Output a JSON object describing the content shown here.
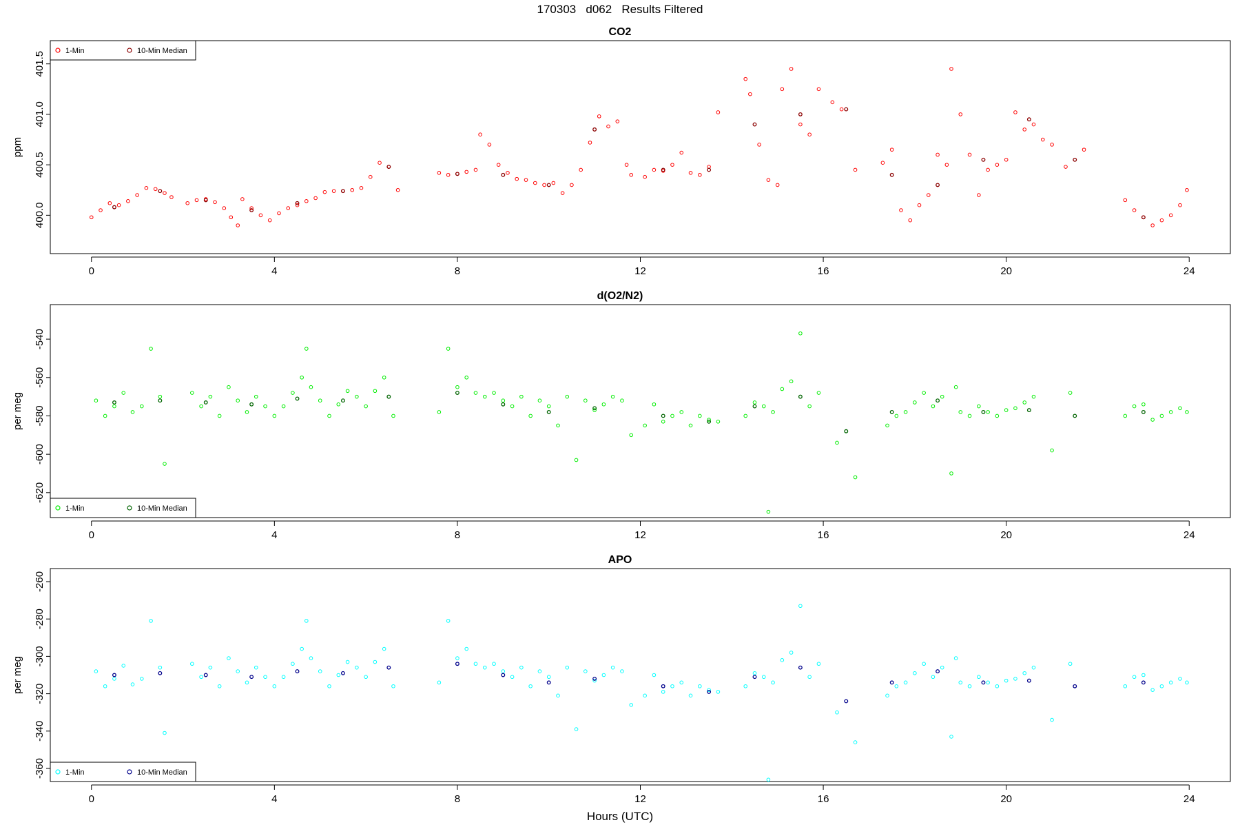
{
  "figure_title": "170303   d062   Results Filtered",
  "xlabel": "Hours (UTC)",
  "colors": {
    "co2_one_min": "#ff0000",
    "co2_median": "#8b0000",
    "o2_one_min": "#00ee00",
    "o2_median": "#006400",
    "apo_one_min": "#00ffff",
    "apo_median": "#00008b"
  },
  "chart_data": [
    {
      "type": "scatter",
      "title": "CO2",
      "ylabel": "ppm",
      "xlim": [
        -0.9,
        24.9
      ],
      "ylim": [
        399.62,
        401.73
      ],
      "xticks": [
        0,
        4,
        8,
        12,
        16,
        20,
        24
      ],
      "yticks": [
        400.0,
        400.5,
        401.0,
        401.5
      ],
      "ytick_labels": [
        "400.0",
        "400.5",
        "401.0",
        "401.5"
      ],
      "legend_position": "top-left",
      "legend": [
        "1-Min",
        "10-Min Median"
      ],
      "series": [
        {
          "name": "1-Min",
          "color": "#ff0000",
          "x": [
            0.0,
            0.2,
            0.4,
            0.6,
            0.8,
            1.0,
            1.2,
            1.4,
            1.6,
            1.75,
            2.1,
            2.3,
            2.5,
            2.7,
            2.9,
            3.05,
            3.2,
            3.3,
            3.5,
            3.7,
            3.9,
            4.1,
            4.3,
            4.5,
            4.7,
            4.9,
            5.1,
            5.3,
            5.5,
            5.7,
            5.9,
            6.1,
            6.3,
            6.5,
            6.7,
            7.6,
            7.8,
            8.0,
            8.2,
            8.4,
            8.5,
            8.7,
            8.9,
            9.1,
            9.3,
            9.5,
            9.7,
            9.9,
            10.1,
            10.3,
            10.5,
            10.7,
            10.9,
            11.1,
            11.3,
            11.5,
            11.7,
            11.8,
            12.1,
            12.3,
            12.5,
            12.7,
            12.9,
            13.1,
            13.3,
            13.5,
            13.7,
            14.3,
            14.4,
            14.6,
            14.8,
            15.0,
            15.1,
            15.3,
            15.5,
            15.7,
            15.9,
            16.2,
            16.4,
            16.7,
            17.3,
            17.5,
            17.7,
            17.9,
            18.1,
            18.3,
            18.5,
            18.7,
            18.8,
            19.0,
            19.2,
            19.4,
            19.6,
            19.8,
            20.0,
            20.2,
            20.4,
            20.6,
            20.8,
            21.0,
            21.3,
            21.7,
            22.6,
            22.8,
            23.0,
            23.2,
            23.4,
            23.6,
            23.8,
            23.95
          ],
          "y": [
            399.98,
            400.05,
            400.12,
            400.1,
            400.14,
            400.2,
            400.27,
            400.26,
            400.22,
            400.18,
            400.12,
            400.15,
            400.16,
            400.13,
            400.07,
            399.98,
            399.9,
            400.16,
            400.07,
            400.0,
            399.95,
            400.02,
            400.07,
            400.1,
            400.14,
            400.17,
            400.23,
            400.24,
            400.24,
            400.25,
            400.27,
            400.38,
            400.52,
            400.48,
            400.25,
            400.42,
            400.4,
            400.41,
            400.43,
            400.45,
            400.8,
            400.7,
            400.5,
            400.42,
            400.36,
            400.35,
            400.32,
            400.3,
            400.32,
            400.22,
            400.3,
            400.45,
            400.72,
            400.98,
            400.88,
            400.93,
            400.5,
            400.4,
            400.38,
            400.45,
            400.44,
            400.5,
            400.62,
            400.42,
            400.4,
            400.48,
            401.02,
            401.35,
            401.2,
            400.7,
            400.35,
            400.3,
            401.25,
            401.45,
            400.9,
            400.8,
            401.25,
            401.12,
            401.05,
            400.45,
            400.52,
            400.65,
            400.05,
            399.95,
            400.1,
            400.2,
            400.6,
            400.5,
            401.45,
            401.0,
            400.6,
            400.2,
            400.45,
            400.5,
            400.55,
            401.02,
            400.85,
            400.9,
            400.75,
            400.7,
            400.48,
            400.65,
            400.15,
            400.05,
            399.98,
            399.9,
            399.95,
            400.0,
            400.1,
            400.25
          ]
        },
        {
          "name": "10-Min Median",
          "color": "#8b0000",
          "x": [
            0.5,
            1.5,
            2.5,
            3.5,
            4.5,
            5.5,
            6.5,
            8.0,
            9.0,
            10.0,
            11.0,
            12.5,
            13.5,
            14.5,
            15.5,
            16.5,
            17.5,
            18.5,
            19.5,
            20.5,
            21.5,
            23.0
          ],
          "y": [
            400.08,
            400.24,
            400.15,
            400.05,
            400.12,
            400.24,
            400.48,
            400.41,
            400.4,
            400.3,
            400.85,
            400.45,
            400.45,
            400.9,
            401.0,
            401.05,
            400.4,
            400.3,
            400.55,
            400.95,
            400.55,
            399.98
          ]
        }
      ]
    },
    {
      "type": "scatter",
      "title": "d(O2/N2)",
      "ylabel": "per meg",
      "xlim": [
        -0.9,
        24.9
      ],
      "ylim": [
        -633,
        -522
      ],
      "xticks": [
        0,
        4,
        8,
        12,
        16,
        20,
        24
      ],
      "yticks": [
        -620,
        -600,
        -580,
        -560,
        -540
      ],
      "ytick_labels": [
        "-620",
        "-600",
        "-580",
        "-560",
        "-540"
      ],
      "legend_position": "bottom-left",
      "legend": [
        "1-Min",
        "10-Min Median"
      ],
      "series": [
        {
          "name": "1-Min",
          "color": "#00ee00",
          "x": [
            0.1,
            0.3,
            0.5,
            0.7,
            0.9,
            1.1,
            1.3,
            1.5,
            1.6,
            2.2,
            2.4,
            2.6,
            2.8,
            3.0,
            3.2,
            3.4,
            3.6,
            3.8,
            4.0,
            4.2,
            4.4,
            4.6,
            4.7,
            4.8,
            5.0,
            5.2,
            5.4,
            5.6,
            5.8,
            6.0,
            6.2,
            6.4,
            6.6,
            7.6,
            7.8,
            8.0,
            8.2,
            8.4,
            8.6,
            8.8,
            9.0,
            9.2,
            9.4,
            9.6,
            9.8,
            10.0,
            10.2,
            10.4,
            10.6,
            10.8,
            11.0,
            11.2,
            11.4,
            11.6,
            11.8,
            12.1,
            12.3,
            12.5,
            12.7,
            12.9,
            13.1,
            13.3,
            13.5,
            13.7,
            14.3,
            14.5,
            14.7,
            14.8,
            14.9,
            15.1,
            15.3,
            15.5,
            15.7,
            15.9,
            16.3,
            16.7,
            17.4,
            17.6,
            17.8,
            18.0,
            18.2,
            18.4,
            18.6,
            18.8,
            18.9,
            19.0,
            19.2,
            19.4,
            19.6,
            19.8,
            20.0,
            20.2,
            20.4,
            20.6,
            21.0,
            21.4,
            22.6,
            22.8,
            23.0,
            23.2,
            23.4,
            23.6,
            23.8,
            23.95
          ],
          "y": [
            -572,
            -580,
            -575,
            -568,
            -578,
            -575,
            -545,
            -570,
            -605,
            -568,
            -575,
            -570,
            -580,
            -565,
            -572,
            -578,
            -570,
            -575,
            -580,
            -575,
            -568,
            -560,
            -545,
            -565,
            -572,
            -580,
            -574,
            -567,
            -570,
            -575,
            -567,
            -560,
            -580,
            -578,
            -545,
            -565,
            -560,
            -568,
            -570,
            -568,
            -572,
            -575,
            -570,
            -580,
            -572,
            -575,
            -585,
            -570,
            -603,
            -572,
            -577,
            -574,
            -570,
            -572,
            -590,
            -585,
            -574,
            -583,
            -580,
            -578,
            -585,
            -580,
            -582,
            -583,
            -580,
            -573,
            -575,
            -630,
            -578,
            -566,
            -562,
            -537,
            -575,
            -568,
            -594,
            -612,
            -585,
            -580,
            -578,
            -573,
            -568,
            -575,
            -570,
            -610,
            -565,
            -578,
            -580,
            -575,
            -578,
            -580,
            -577,
            -576,
            -573,
            -570,
            -598,
            -568,
            -580,
            -575,
            -574,
            -582,
            -580,
            -578,
            -576,
            -578
          ]
        },
        {
          "name": "10-Min Median",
          "color": "#006400",
          "x": [
            0.5,
            1.5,
            2.5,
            3.5,
            4.5,
            5.5,
            6.5,
            8.0,
            9.0,
            10.0,
            11.0,
            12.5,
            13.5,
            14.5,
            15.5,
            16.5,
            17.5,
            18.5,
            19.5,
            20.5,
            21.5,
            23.0
          ],
          "y": [
            -573,
            -572,
            -573,
            -574,
            -571,
            -572,
            -570,
            -568,
            -574,
            -578,
            -576,
            -580,
            -583,
            -575,
            -570,
            -588,
            -578,
            -572,
            -578,
            -577,
            -580,
            -578
          ]
        }
      ]
    },
    {
      "type": "scatter",
      "title": "APO",
      "ylabel": "per meg",
      "xlim": [
        -0.9,
        24.9
      ],
      "ylim": [
        -367,
        -253
      ],
      "xticks": [
        0,
        4,
        8,
        12,
        16,
        20,
        24
      ],
      "yticks": [
        -360,
        -340,
        -320,
        -300,
        -280,
        -260
      ],
      "ytick_labels": [
        "-360",
        "-340",
        "-320",
        "-300",
        "-280",
        "-260"
      ],
      "legend_position": "bottom-left",
      "legend": [
        "1-Min",
        "10-Min Median"
      ],
      "series": [
        {
          "name": "1-Min",
          "color": "#00ffff",
          "x": [
            0.1,
            0.3,
            0.5,
            0.7,
            0.9,
            1.1,
            1.3,
            1.5,
            1.6,
            2.2,
            2.4,
            2.6,
            2.8,
            3.0,
            3.2,
            3.4,
            3.6,
            3.8,
            4.0,
            4.2,
            4.4,
            4.6,
            4.7,
            4.8,
            5.0,
            5.2,
            5.4,
            5.6,
            5.8,
            6.0,
            6.2,
            6.4,
            6.6,
            7.6,
            7.8,
            8.0,
            8.2,
            8.4,
            8.6,
            8.8,
            9.0,
            9.2,
            9.4,
            9.6,
            9.8,
            10.0,
            10.2,
            10.4,
            10.6,
            10.8,
            11.0,
            11.2,
            11.4,
            11.6,
            11.8,
            12.1,
            12.3,
            12.5,
            12.7,
            12.9,
            13.1,
            13.3,
            13.5,
            13.7,
            14.3,
            14.5,
            14.7,
            14.8,
            14.9,
            15.1,
            15.3,
            15.5,
            15.7,
            15.9,
            16.3,
            16.7,
            17.4,
            17.6,
            17.8,
            18.0,
            18.2,
            18.4,
            18.6,
            18.8,
            18.9,
            19.0,
            19.2,
            19.4,
            19.6,
            19.8,
            20.0,
            20.2,
            20.4,
            20.6,
            21.0,
            21.4,
            22.6,
            22.8,
            23.0,
            23.2,
            23.4,
            23.6,
            23.8,
            23.95
          ],
          "y": [
            -308,
            -316,
            -312,
            -305,
            -315,
            -312,
            -281,
            -306,
            -341,
            -304,
            -311,
            -306,
            -316,
            -301,
            -308,
            -314,
            -306,
            -311,
            -316,
            -311,
            -304,
            -296,
            -281,
            -301,
            -308,
            -316,
            -310,
            -303,
            -306,
            -311,
            -303,
            -296,
            -316,
            -314,
            -281,
            -301,
            -296,
            -304,
            -306,
            -304,
            -308,
            -311,
            -306,
            -316,
            -308,
            -311,
            -321,
            -306,
            -339,
            -308,
            -313,
            -310,
            -306,
            -308,
            -326,
            -321,
            -310,
            -319,
            -316,
            -314,
            -321,
            -316,
            -318,
            -319,
            -316,
            -309,
            -311,
            -366,
            -314,
            -302,
            -298,
            -273,
            -311,
            -304,
            -330,
            -346,
            -321,
            -316,
            -314,
            -309,
            -304,
            -311,
            -306,
            -343,
            -301,
            -314,
            -316,
            -311,
            -314,
            -316,
            -313,
            -312,
            -309,
            -306,
            -334,
            -304,
            -316,
            -311,
            -310,
            -318,
            -316,
            -314,
            -312,
            -314
          ]
        },
        {
          "name": "10-Min Median",
          "color": "#00008b",
          "x": [
            0.5,
            1.5,
            2.5,
            3.5,
            4.5,
            5.5,
            6.5,
            8.0,
            9.0,
            10.0,
            11.0,
            12.5,
            13.5,
            14.5,
            15.5,
            16.5,
            17.5,
            18.5,
            19.5,
            20.5,
            21.5,
            23.0
          ],
          "y": [
            -310,
            -309,
            -310,
            -311,
            -308,
            -309,
            -306,
            -304,
            -310,
            -314,
            -312,
            -316,
            -319,
            -311,
            -306,
            -324,
            -314,
            -308,
            -314,
            -313,
            -316,
            -314
          ]
        }
      ]
    }
  ]
}
